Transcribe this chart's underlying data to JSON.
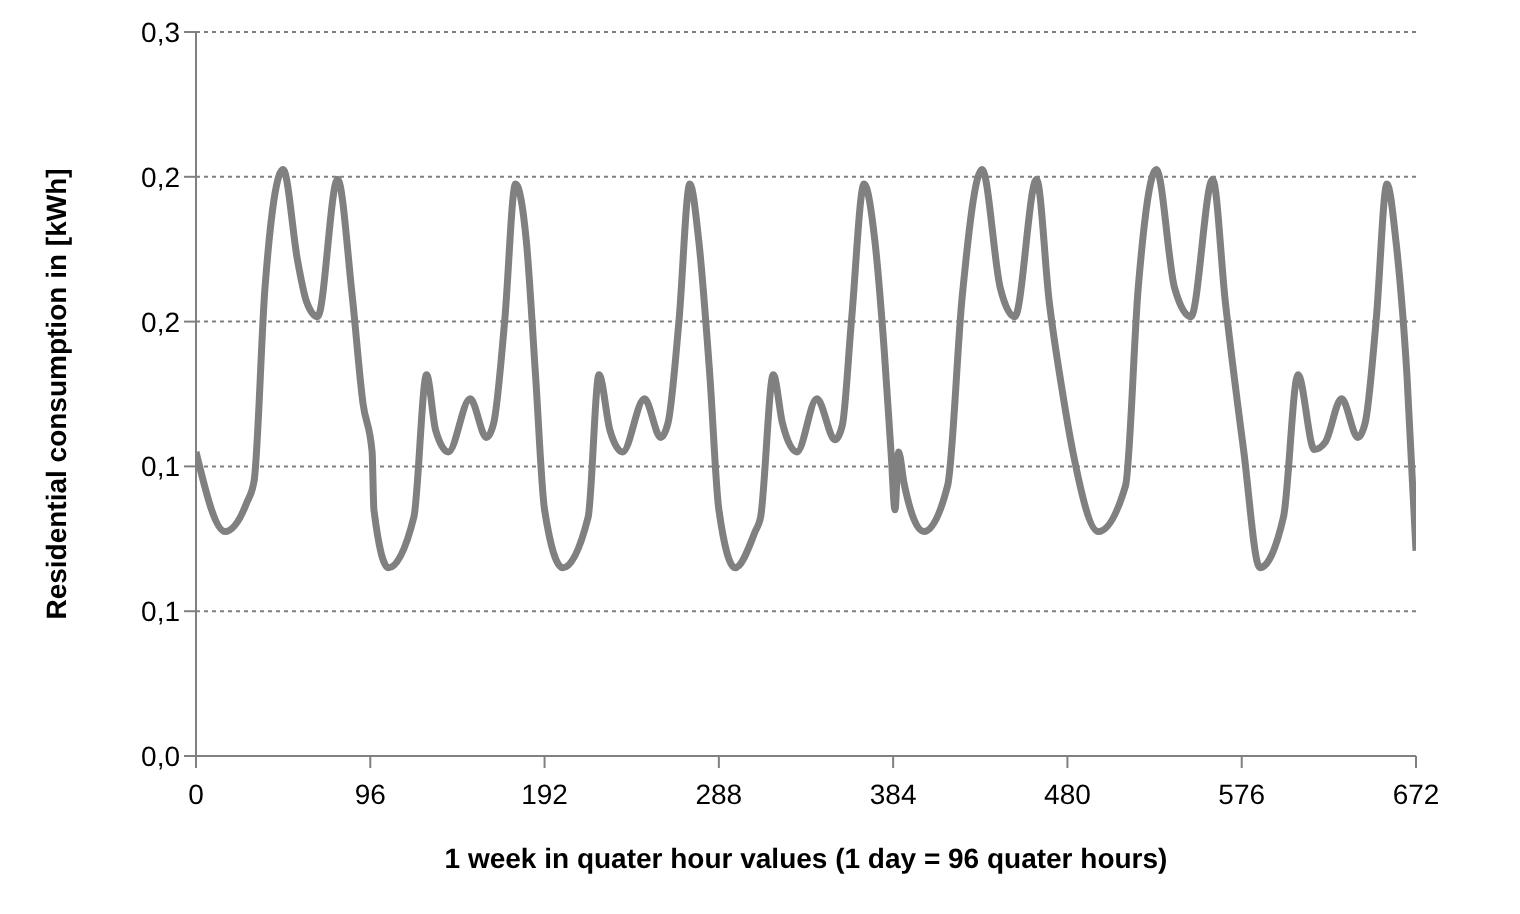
{
  "chart_data": {
    "type": "line",
    "xlabel": "1 week in quater hour values (1 day = 96 quater hours)",
    "ylabel": "Residential consumption in [kWh]",
    "xlim": [
      0,
      672
    ],
    "xticks": [
      0,
      96,
      192,
      288,
      384,
      480,
      576,
      672
    ],
    "ylim": [
      0,
      0.3
    ],
    "yticks": [
      {
        "value": 0,
        "label": "0,0"
      },
      {
        "value": 0.06,
        "label": "0,1"
      },
      {
        "value": 0.12,
        "label": "0,1"
      },
      {
        "value": 0.18,
        "label": "0,2"
      },
      {
        "value": 0.24,
        "label": "0,2"
      },
      {
        "value": 0.3,
        "label": "0,3"
      }
    ],
    "grid": "y",
    "legend": false,
    "marker": "none",
    "line_style": "solid",
    "series": [
      {
        "color": "#808080",
        "x": [
          0,
          16,
          28,
          32,
          38,
          48,
          56,
          61,
          67,
          78,
          86,
          92,
          97,
          98,
          106,
          120,
          127,
          132,
          139,
          151,
          160,
          164,
          170,
          176,
          182,
          187,
          192,
          202,
          216,
          222,
          228,
          235,
          247,
          256,
          260,
          266,
          272,
          277,
          283,
          288,
          297,
          308,
          311,
          318,
          323,
          331,
          342,
          352,
          356,
          361,
          368,
          374,
          379,
          383,
          385,
          387,
          390,
          401,
          414,
          422,
          433,
          443,
          451,
          463,
          470,
          477,
          483,
          497,
          512,
          519,
          529,
          539,
          548,
          560,
          567,
          577,
          586,
          599,
          607,
          616,
          622,
          631,
          640,
          644,
          650,
          656,
          661,
          667,
          672
        ],
        "values": [
          0.126,
          0.093,
          0.105,
          0.114,
          0.194,
          0.243,
          0.205,
          0.188,
          0.182,
          0.239,
          0.191,
          0.146,
          0.126,
          0.102,
          0.078,
          0.099,
          0.158,
          0.135,
          0.126,
          0.148,
          0.132,
          0.138,
          0.18,
          0.237,
          0.213,
          0.158,
          0.102,
          0.078,
          0.099,
          0.158,
          0.135,
          0.126,
          0.148,
          0.132,
          0.138,
          0.18,
          0.237,
          0.213,
          0.158,
          0.102,
          0.078,
          0.093,
          0.099,
          0.158,
          0.138,
          0.126,
          0.148,
          0.131,
          0.137,
          0.18,
          0.237,
          0.213,
          0.169,
          0.124,
          0.102,
          0.126,
          0.113,
          0.093,
          0.112,
          0.19,
          0.243,
          0.194,
          0.182,
          0.239,
          0.188,
          0.152,
          0.126,
          0.093,
          0.112,
          0.194,
          0.243,
          0.194,
          0.182,
          0.239,
          0.188,
          0.127,
          0.078,
          0.099,
          0.158,
          0.127,
          0.13,
          0.148,
          0.132,
          0.138,
          0.18,
          0.237,
          0.213,
          0.158,
          0.085
        ]
      }
    ]
  }
}
